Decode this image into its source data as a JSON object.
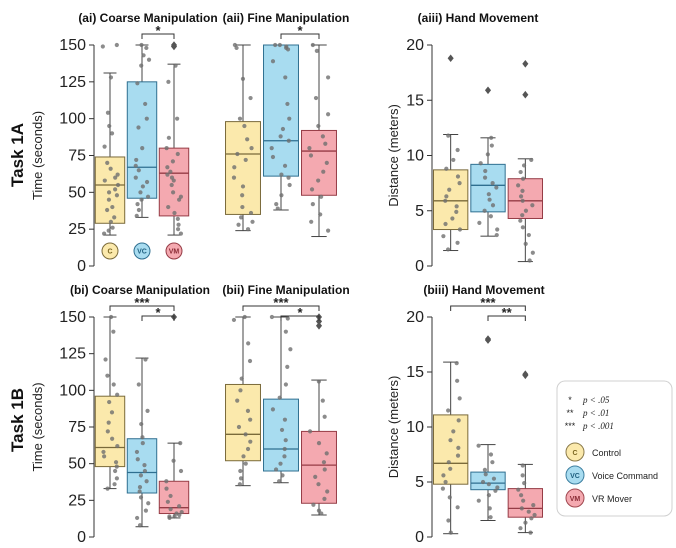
{
  "colors": {
    "Control": "#FBE9AC",
    "Voice Command": "#A8DCF0",
    "VR Mover": "#F4A9B0"
  },
  "groups": [
    "Control",
    "Voice Command",
    "VR Mover"
  ],
  "group_badges": [
    "C",
    "VC",
    "VM"
  ],
  "rows": [
    {
      "label": "Task 1A"
    },
    {
      "label": "Task 1B"
    }
  ],
  "legend": {
    "sig": [
      {
        "symbol": "*",
        "label": "p < .05"
      },
      {
        "symbol": "**",
        "label": "p < .01"
      },
      {
        "symbol": "***",
        "label": "p < .001"
      }
    ],
    "groups": [
      "Control",
      "Voice Command",
      "VR Mover"
    ]
  },
  "chart_data": [
    {
      "id": "ai",
      "row": 0,
      "type": "box",
      "title": "(ai) Coarse Manipulation",
      "ylabel": "Time (seconds)",
      "ylim": [
        0,
        150
      ],
      "yticks": [
        0,
        25,
        50,
        75,
        100,
        125,
        150
      ],
      "boxes": [
        {
          "group": "Control",
          "whislo": 21,
          "q1": 29,
          "med": 55,
          "q3": 74,
          "whishi": 131,
          "fliers": [],
          "points": [
            150,
            149,
            128,
            104,
            95,
            90,
            81,
            70,
            66,
            62,
            60,
            58,
            55,
            52,
            50,
            48,
            45,
            40,
            38,
            33,
            30,
            26,
            24,
            22
          ]
        },
        {
          "group": "Voice Command",
          "whislo": 33,
          "q1": 46,
          "med": 67,
          "q3": 125,
          "whishi": 150,
          "fliers": [],
          "points": [
            150,
            148,
            143,
            140,
            136,
            124,
            110,
            100,
            94,
            80,
            72,
            68,
            65,
            60,
            57,
            54,
            50,
            47,
            45,
            42,
            38,
            34
          ]
        },
        {
          "group": "VR Mover",
          "whislo": 21,
          "q1": 34,
          "med": 63,
          "q3": 80,
          "whishi": 137,
          "fliers": [
            150,
            149
          ],
          "points": [
            136,
            125,
            100,
            87,
            80,
            76,
            71,
            67,
            64,
            62,
            60,
            58,
            55,
            50,
            47,
            45,
            40,
            36,
            32,
            28,
            25,
            22
          ]
        }
      ],
      "sig": [
        {
          "from": 1,
          "to": 2,
          "label": "*"
        }
      ],
      "show_badges": true
    },
    {
      "id": "aii",
      "row": 0,
      "type": "box",
      "title": "(aii) Fine Manipulation",
      "ylabel": "",
      "ylim": [
        0,
        150
      ],
      "yticks": [],
      "boxes": [
        {
          "group": "Control",
          "whislo": 24,
          "q1": 35,
          "med": 76,
          "q3": 98,
          "whishi": 150,
          "fliers": [],
          "points": [
            150,
            148,
            127,
            114,
            100,
            95,
            86,
            80,
            76,
            72,
            67,
            60,
            54,
            48,
            40,
            36,
            33,
            30,
            28,
            25
          ]
        },
        {
          "group": "Voice Command",
          "whislo": 38,
          "q1": 61,
          "med": 85,
          "q3": 150,
          "whishi": 150,
          "fliers": [],
          "points": [
            150,
            150,
            149,
            148,
            147,
            139,
            128,
            110,
            100,
            93,
            88,
            85,
            80,
            74,
            68,
            62,
            60,
            55,
            48,
            42,
            39
          ]
        },
        {
          "group": "VR Mover",
          "whislo": 20,
          "q1": 48,
          "med": 78,
          "q3": 92,
          "whishi": 150,
          "fliers": [],
          "points": [
            150,
            146,
            128,
            114,
            103,
            95,
            88,
            83,
            80,
            75,
            70,
            64,
            58,
            52,
            47,
            42,
            35,
            30,
            24
          ]
        }
      ],
      "sig": [
        {
          "from": 1,
          "to": 2,
          "label": "*"
        }
      ],
      "show_badges": false
    },
    {
      "id": "aiii",
      "row": 0,
      "type": "box",
      "title": "(aiii) Hand Movement",
      "ylabel": "Distance (meters)",
      "ylim": [
        0,
        20
      ],
      "yticks": [
        0,
        5,
        10,
        15,
        20
      ],
      "boxes": [
        {
          "group": "Control",
          "whislo": 1.4,
          "q1": 3.3,
          "med": 5.9,
          "q3": 8.7,
          "whishi": 11.9,
          "fliers": [
            18.8
          ],
          "points": [
            11.8,
            10.5,
            9.6,
            8.8,
            8.1,
            7.5,
            6.9,
            6.3,
            5.9,
            5.4,
            4.9,
            4.3,
            3.8,
            3.3,
            2.7,
            2.1,
            1.5
          ]
        },
        {
          "group": "Voice Command",
          "whislo": 2.7,
          "q1": 4.9,
          "med": 7.3,
          "q3": 9.2,
          "whishi": 11.6,
          "fliers": [
            15.9
          ],
          "points": [
            11.6,
            10.9,
            10.1,
            9.3,
            8.6,
            8.0,
            7.5,
            7.1,
            6.5,
            6.0,
            5.5,
            5.0,
            4.5,
            3.9,
            3.3,
            2.8
          ]
        },
        {
          "group": "VR Mover",
          "whislo": 0.4,
          "q1": 4.3,
          "med": 5.9,
          "q3": 7.9,
          "whishi": 9.7,
          "fliers": [
            18.3,
            15.5
          ],
          "points": [
            9.6,
            9.1,
            8.5,
            7.9,
            7.3,
            6.8,
            6.3,
            5.9,
            5.5,
            5.0,
            4.6,
            4.1,
            3.5,
            2.8,
            2.0,
            1.2,
            0.5
          ]
        }
      ],
      "sig": [],
      "show_badges": false
    },
    {
      "id": "bi",
      "row": 1,
      "type": "box",
      "title": "(bi) Coarse Manipulation",
      "ylabel": "Time (seconds)",
      "ylim": [
        0,
        150
      ],
      "yticks": [
        0,
        25,
        50,
        75,
        100,
        125,
        150
      ],
      "boxes": [
        {
          "group": "Control",
          "whislo": 33,
          "q1": 48,
          "med": 61,
          "q3": 96,
          "whishi": 150,
          "fliers": [],
          "points": [
            150,
            140,
            121,
            110,
            104,
            97,
            92,
            85,
            78,
            72,
            67,
            62,
            58,
            55,
            51,
            48,
            45,
            40,
            36,
            33
          ]
        },
        {
          "group": "Voice Command",
          "whislo": 7,
          "q1": 30,
          "med": 44,
          "q3": 67,
          "whishi": 122,
          "fliers": [],
          "points": [
            121,
            104,
            86,
            77,
            68,
            64,
            58,
            53,
            49,
            45,
            42,
            38,
            34,
            31,
            27,
            23,
            18,
            13,
            8
          ]
        },
        {
          "group": "VR Mover",
          "whislo": 13,
          "q1": 16,
          "med": 20,
          "q3": 38,
          "whishi": 64,
          "fliers": [
            150
          ],
          "points": [
            64,
            52,
            45,
            38,
            33,
            28,
            24,
            21,
            19,
            17,
            16,
            15,
            14,
            14,
            13
          ]
        }
      ],
      "sig": [
        {
          "from": 0,
          "to": 2,
          "label": "***"
        },
        {
          "from": 1,
          "to": 2,
          "label": "*"
        }
      ],
      "show_badges": false
    },
    {
      "id": "bii",
      "row": 1,
      "type": "box",
      "title": "(bii) Fine Manipulation",
      "ylabel": "",
      "ylim": [
        0,
        150
      ],
      "yticks": [],
      "boxes": [
        {
          "group": "Control",
          "whislo": 35,
          "q1": 52,
          "med": 70,
          "q3": 104,
          "whishi": 150,
          "fliers": [],
          "points": [
            150,
            148,
            132,
            120,
            108,
            100,
            93,
            86,
            80,
            75,
            70,
            65,
            60,
            55,
            50,
            45,
            40,
            36
          ]
        },
        {
          "group": "Voice Command",
          "whislo": 37,
          "q1": 45,
          "med": 60,
          "q3": 94,
          "whishi": 150,
          "fliers": [],
          "points": [
            150,
            149,
            140,
            128,
            116,
            104,
            95,
            87,
            80,
            73,
            66,
            60,
            55,
            50,
            46,
            42,
            38
          ]
        },
        {
          "group": "VR Mover",
          "whislo": 15,
          "q1": 23,
          "med": 49,
          "q3": 72,
          "whishi": 107,
          "fliers": [
            150,
            147,
            144
          ],
          "points": [
            106,
            93,
            82,
            72,
            64,
            57,
            51,
            46,
            41,
            36,
            31,
            26,
            22,
            18,
            16
          ]
        }
      ],
      "sig": [
        {
          "from": 0,
          "to": 2,
          "label": "***"
        },
        {
          "from": 1,
          "to": 2,
          "label": "*"
        }
      ],
      "show_badges": false
    },
    {
      "id": "biii",
      "row": 1,
      "type": "box",
      "title": "(biii) Hand Movement",
      "ylabel": "Distance (meters)",
      "ylim": [
        0,
        20
      ],
      "yticks": [
        0,
        5,
        10,
        15,
        20
      ],
      "boxes": [
        {
          "group": "Control",
          "whislo": 0.3,
          "q1": 4.8,
          "med": 6.7,
          "q3": 11.1,
          "whishi": 15.9,
          "fliers": [],
          "points": [
            15.8,
            14.2,
            12.6,
            11.5,
            10.6,
            9.6,
            8.8,
            8.1,
            7.4,
            6.8,
            6.2,
            5.6,
            5.0,
            4.4,
            3.6,
            2.7,
            1.5,
            0.4
          ]
        },
        {
          "group": "Voice Command",
          "whislo": 1.5,
          "q1": 4.3,
          "med": 4.9,
          "q3": 5.9,
          "whishi": 8.4,
          "fliers": [
            18.0,
            17.9
          ],
          "points": [
            8.3,
            7.5,
            6.8,
            6.1,
            5.7,
            5.3,
            5.0,
            4.8,
            4.5,
            4.2,
            3.8,
            3.3,
            2.6,
            1.8
          ]
        },
        {
          "group": "VR Mover",
          "whislo": 0.4,
          "q1": 1.8,
          "med": 2.6,
          "q3": 4.4,
          "whishi": 6.6,
          "fliers": [
            14.8,
            14.7
          ],
          "points": [
            6.5,
            5.6,
            4.9,
            4.3,
            3.8,
            3.3,
            2.9,
            2.6,
            2.3,
            2.0,
            1.7,
            1.3,
            0.8,
            0.4
          ]
        }
      ],
      "sig": [
        {
          "from": 0,
          "to": 2,
          "label": "***"
        },
        {
          "from": 1,
          "to": 2,
          "label": "**"
        }
      ],
      "show_badges": false
    }
  ]
}
